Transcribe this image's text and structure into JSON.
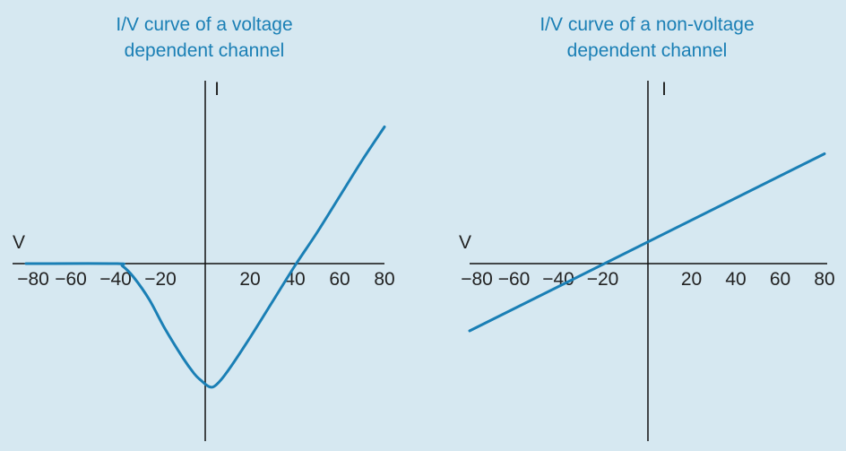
{
  "background": "#d6e8f1",
  "curve_color": "#1a7fb5",
  "title_color": "#1a7fb5",
  "axis_color": "#111111",
  "chart_data": [
    {
      "type": "line",
      "title_lines": [
        "I/V curve of a voltage",
        "dependent channel"
      ],
      "xlabel": "V",
      "ylabel": "I",
      "xlim": [
        -80,
        80
      ],
      "ylim": [
        -60,
        80
      ],
      "x_ticks": [
        -80,
        -60,
        -40,
        -20,
        20,
        40,
        60,
        80
      ],
      "x_tick_labels": [
        "−80",
        "−60",
        "−40",
        "−20",
        "20",
        "40",
        "60",
        "80"
      ],
      "grid": false,
      "series": [
        {
          "x": [
            -80,
            -40,
            -37,
            -32,
            -25,
            -18,
            -10,
            -5,
            -2,
            2,
            5,
            10,
            20,
            30,
            40,
            50,
            60,
            70,
            80
          ],
          "y": [
            0,
            0,
            -1,
            -6,
            -16,
            -29,
            -42,
            -49,
            -52,
            -55,
            -54,
            -48,
            -33,
            -17,
            -1,
            14,
            30,
            46,
            61
          ]
        }
      ]
    },
    {
      "type": "line",
      "title_lines": [
        "I/V curve of a non-voltage",
        "dependent channel"
      ],
      "xlabel": "V",
      "ylabel": "I",
      "xlim": [
        -80,
        80
      ],
      "ylim": [
        -60,
        80
      ],
      "x_ticks": [
        -80,
        -60,
        -40,
        -20,
        20,
        40,
        60,
        80
      ],
      "x_tick_labels": [
        "−80",
        "−60",
        "−40",
        "−20",
        "20",
        "40",
        "60",
        "80"
      ],
      "grid": false,
      "series": [
        {
          "x": [
            -80,
            80
          ],
          "y": [
            -30,
            49
          ]
        }
      ]
    }
  ]
}
